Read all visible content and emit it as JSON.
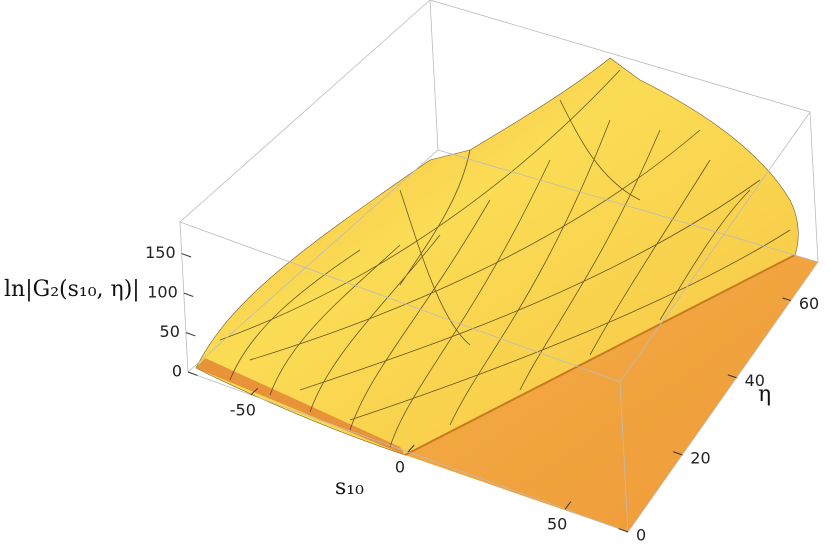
{
  "chart_data": {
    "type": "surface3d",
    "zlabel": "ln|G₂(s₁₀, η)|",
    "xlabel": "s₁₀",
    "ylabel": "η",
    "xlim": [
      -70,
      70
    ],
    "xticks": [
      -50,
      0,
      50
    ],
    "ylim": [
      0,
      70
    ],
    "yticks": [
      0,
      20,
      40,
      60
    ],
    "zlim": [
      0,
      190
    ],
    "zticks": [
      0,
      50,
      100,
      150
    ]
  }
}
